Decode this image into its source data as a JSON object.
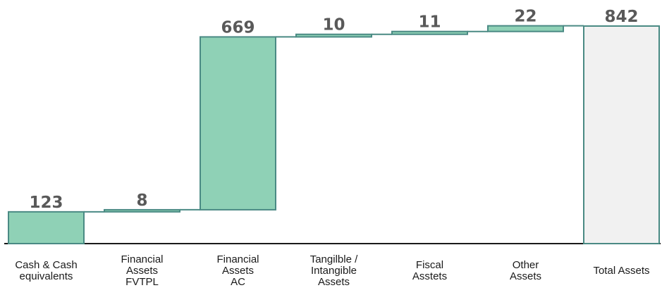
{
  "chart_data": {
    "type": "waterfall",
    "categories": [
      [
        "Cash & Cash",
        "equivalents"
      ],
      [
        "Financial",
        "Assets",
        "FVTPL"
      ],
      [
        "Financial",
        "Assets",
        "AC"
      ],
      [
        "Tangilble /",
        "Intangible",
        "Assets"
      ],
      [
        "Fiscal",
        "Asstets"
      ],
      [
        "Other",
        "Assets"
      ],
      [
        "Total Assets"
      ]
    ],
    "values": [
      123,
      8,
      669,
      10,
      11,
      22,
      842
    ],
    "labels": [
      "123",
      "8",
      "669",
      "10",
      "11",
      "22",
      "842"
    ],
    "total_index": 6,
    "colors": {
      "increase_fill": "#8fd1b6",
      "increase_stroke": "#4a8a84",
      "total_fill": "#f1f1f1",
      "total_stroke": "#4a8a84",
      "connector": "#4a8a84",
      "axis": "#1a1a1a"
    }
  }
}
